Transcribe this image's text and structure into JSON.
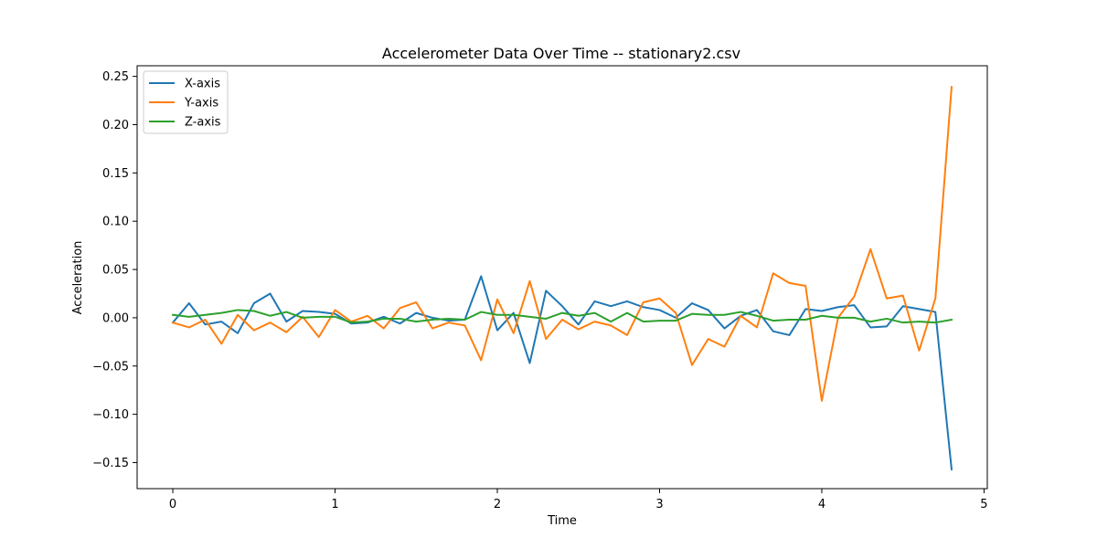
{
  "chart_data": {
    "type": "line",
    "title": "Accelerometer Data Over Time -- stationary2.csv",
    "xlabel": "Time",
    "ylabel": "Acceleration",
    "xlim": [
      -0.22,
      5.02
    ],
    "ylim": [
      -0.177,
      0.261
    ],
    "x_ticks": [
      0,
      1,
      2,
      3,
      4,
      5
    ],
    "y_ticks": [
      -0.15,
      -0.1,
      -0.05,
      0.0,
      0.05,
      0.1,
      0.15,
      0.2,
      0.25
    ],
    "x_tick_labels": [
      "0",
      "1",
      "2",
      "3",
      "4",
      "5"
    ],
    "y_tick_labels": [
      "−0.15",
      "−0.10",
      "−0.05",
      "0.00",
      "0.05",
      "0.10",
      "0.15",
      "0.20",
      "0.25"
    ],
    "legend_position": "top-left",
    "grid": false,
    "x": [
      0,
      0.1,
      0.2,
      0.3,
      0.4,
      0.5,
      0.6,
      0.7,
      0.8,
      0.9,
      1.0,
      1.1,
      1.2,
      1.3,
      1.4,
      1.5,
      1.6,
      1.7,
      1.8,
      1.9,
      2.0,
      2.1,
      2.2,
      2.3,
      2.4,
      2.5,
      2.6,
      2.7,
      2.8,
      2.9,
      3.0,
      3.1,
      3.2,
      3.3,
      3.4,
      3.5,
      3.6,
      3.7,
      3.8,
      3.9,
      4.0,
      4.1,
      4.2,
      4.3,
      4.4,
      4.5,
      4.6,
      4.7,
      4.8
    ],
    "series": [
      {
        "name": "X-axis",
        "color": "#1f77b4",
        "values": [
          -0.005,
          0.015,
          -0.007,
          -0.004,
          -0.016,
          0.015,
          0.025,
          -0.004,
          0.007,
          0.006,
          0.004,
          -0.006,
          -0.005,
          0.001,
          -0.006,
          0.005,
          0.0,
          -0.003,
          -0.002,
          0.043,
          -0.013,
          0.005,
          -0.047,
          0.028,
          0.012,
          -0.007,
          0.017,
          0.012,
          0.017,
          0.011,
          0.008,
          0.0,
          0.015,
          0.008,
          -0.011,
          0.002,
          0.008,
          -0.014,
          -0.018,
          0.009,
          0.007,
          0.011,
          0.013,
          -0.01,
          -0.009,
          0.012,
          0.009,
          0.006,
          -0.157
        ]
      },
      {
        "name": "Y-axis",
        "color": "#ff7f0e",
        "values": [
          -0.005,
          -0.01,
          -0.002,
          -0.027,
          0.003,
          -0.013,
          -0.005,
          -0.015,
          0.001,
          -0.02,
          0.008,
          -0.004,
          0.002,
          -0.011,
          0.01,
          0.016,
          -0.011,
          -0.005,
          -0.008,
          -0.044,
          0.019,
          -0.016,
          0.038,
          -0.022,
          -0.002,
          -0.012,
          -0.004,
          -0.008,
          -0.018,
          0.016,
          0.02,
          0.005,
          -0.049,
          -0.022,
          -0.03,
          0.002,
          -0.01,
          0.046,
          0.036,
          0.033,
          -0.086,
          0.0,
          0.022,
          0.071,
          0.02,
          0.023,
          -0.034,
          0.02,
          0.239
        ]
      },
      {
        "name": "Z-axis",
        "color": "#2ca02c",
        "values": [
          0.003,
          0.001,
          0.003,
          0.005,
          0.008,
          0.007,
          0.002,
          0.006,
          0.0,
          0.001,
          0.001,
          -0.005,
          -0.004,
          -0.001,
          -0.001,
          -0.004,
          -0.002,
          -0.001,
          -0.002,
          0.006,
          0.003,
          0.003,
          0.001,
          -0.001,
          0.005,
          0.002,
          0.005,
          -0.004,
          0.005,
          -0.004,
          -0.003,
          -0.003,
          0.004,
          0.003,
          0.003,
          0.006,
          0.002,
          -0.003,
          -0.002,
          -0.002,
          0.002,
          0.0,
          0.0,
          -0.004,
          -0.001,
          -0.005,
          -0.004,
          -0.005,
          -0.002
        ]
      }
    ]
  }
}
